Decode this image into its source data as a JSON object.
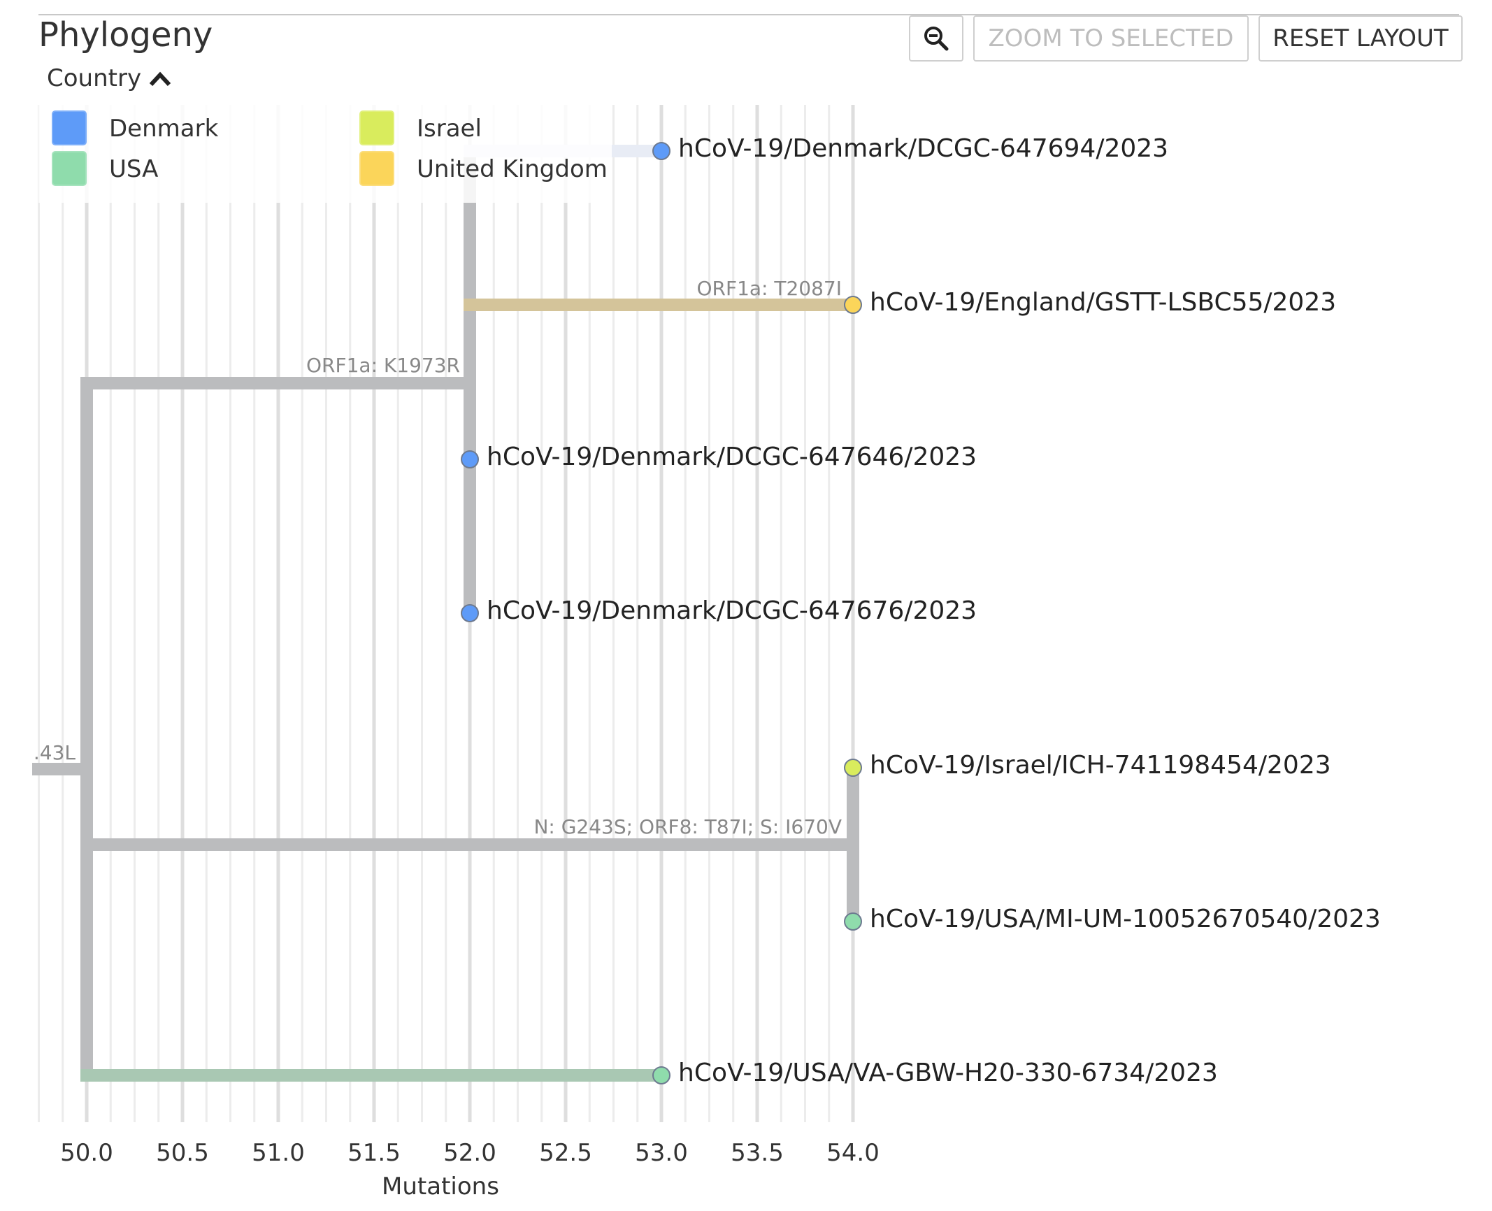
{
  "panel": {
    "title": "Phylogeny",
    "zoom_icon": "magnifier-minus-icon",
    "zoom_to_selected_label": "ZOOM TO SELECTED",
    "reset_layout_label": "RESET LAYOUT"
  },
  "legend": {
    "title": "Country",
    "toggle_icon": "chevron-up-icon",
    "items": [
      {
        "label": "Denmark",
        "color": "#5e9bf8"
      },
      {
        "label": "USA",
        "color": "#8fdcac"
      },
      {
        "label": "Israel",
        "color": "#d9ec5d"
      },
      {
        "label": "United Kingdom",
        "color": "#fbd55a"
      }
    ]
  },
  "axis": {
    "label": "Mutations",
    "ticks": [
      "50.0",
      "50.5",
      "51.0",
      "51.5",
      "52.0",
      "52.5",
      "53.0",
      "53.5",
      "54.0"
    ]
  },
  "tree": {
    "branch_color": "#bbbcbe",
    "tips": [
      {
        "name": "hCoV-19/Denmark/DCGC-647694/2023",
        "x": 53.0,
        "country": "Denmark",
        "color": "#5e9bf8"
      },
      {
        "name": "hCoV-19/England/GSTT-LSBC55/2023",
        "x": 54.0,
        "country": "United Kingdom",
        "color": "#fbd55a"
      },
      {
        "name": "hCoV-19/Denmark/DCGC-647646/2023",
        "x": 52.0,
        "country": "Denmark",
        "color": "#5e9bf8"
      },
      {
        "name": "hCoV-19/Denmark/DCGC-647676/2023",
        "x": 52.0,
        "country": "Denmark",
        "color": "#5e9bf8"
      },
      {
        "name": "hCoV-19/Israel/ICH-741198454/2023",
        "x": 54.0,
        "country": "Israel",
        "color": "#d9ec5d"
      },
      {
        "name": "hCoV-19/USA/MI-UM-10052670540/2023",
        "x": 54.0,
        "country": "USA",
        "color": "#8fdcac"
      },
      {
        "name": "hCoV-19/USA/VA-GBW-H20-330-6734/2023",
        "x": 53.0,
        "country": "USA",
        "color": "#8fdcac"
      }
    ],
    "mutation_labels": [
      {
        "text": "ORF1a: T2087I",
        "node_x": 54.0
      },
      {
        "text": "ORF1a: K1973R",
        "node_x": 52.0
      },
      {
        "text": "N: G243S; ORF8: T87I; S: I670V",
        "node_x": 54.0
      },
      {
        "text": ".43L",
        "node_x": 50.0
      }
    ]
  }
}
